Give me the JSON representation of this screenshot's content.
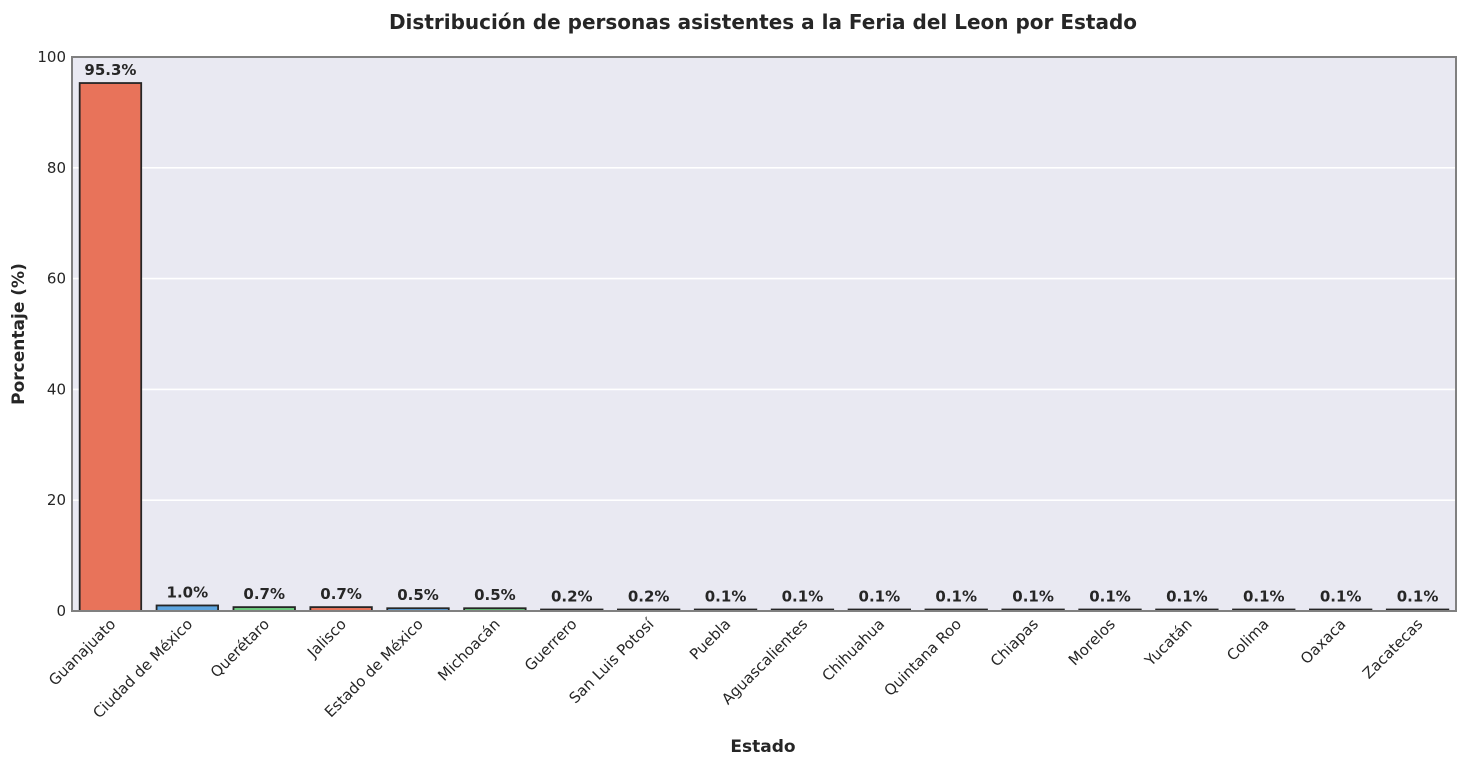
{
  "chart_data": {
    "type": "bar",
    "title": "Distribución de personas asistentes a la Feria del Leon por Estado",
    "xlabel": "Estado",
    "ylabel": "Porcentaje (%)",
    "ylim": [
      0,
      100
    ],
    "yticks": [
      "0",
      "20",
      "40",
      "60",
      "80",
      "100"
    ],
    "grid": "horizontal",
    "categories": [
      "Guanajuato",
      "Ciudad de México",
      "Querétaro",
      "Jalisco",
      "Estado de México",
      "Michoacán",
      "Guerrero",
      "San Luis Potosí",
      "Puebla",
      "Aguascalientes",
      "Chihuahua",
      "Quintana Roo",
      "Chiapas",
      "Morelos",
      "Yucatán",
      "Colima",
      "Oaxaca",
      "Zacatecas"
    ],
    "values": [
      95.3,
      1.0,
      0.7,
      0.7,
      0.5,
      0.5,
      0.2,
      0.2,
      0.1,
      0.1,
      0.1,
      0.1,
      0.1,
      0.1,
      0.1,
      0.1,
      0.1,
      0.1
    ],
    "data_labels": [
      "95.3%",
      "1.0%",
      "0.7%",
      "0.7%",
      "0.5%",
      "0.5%",
      "0.2%",
      "0.2%",
      "0.1%",
      "0.1%",
      "0.1%",
      "0.1%",
      "0.1%",
      "0.1%",
      "0.1%",
      "0.1%",
      "0.1%",
      "0.1%"
    ],
    "colors": [
      "#e8735a",
      "#5da5e0",
      "#6ccb7e",
      "#e8735a",
      "#5da5e0",
      "#6ccb7e",
      "#e8735a",
      "#5da5e0",
      "#6ccb7e",
      "#e8735a",
      "#5da5e0",
      "#6ccb7e",
      "#e8735a",
      "#5da5e0",
      "#6ccb7e",
      "#e8735a",
      "#5da5e0",
      "#6ccb7e"
    ],
    "plot_background": "#e9e9f2",
    "grid_color": "#ffffff",
    "frame_color": "#808080",
    "bar_edge_color": "#262626"
  }
}
